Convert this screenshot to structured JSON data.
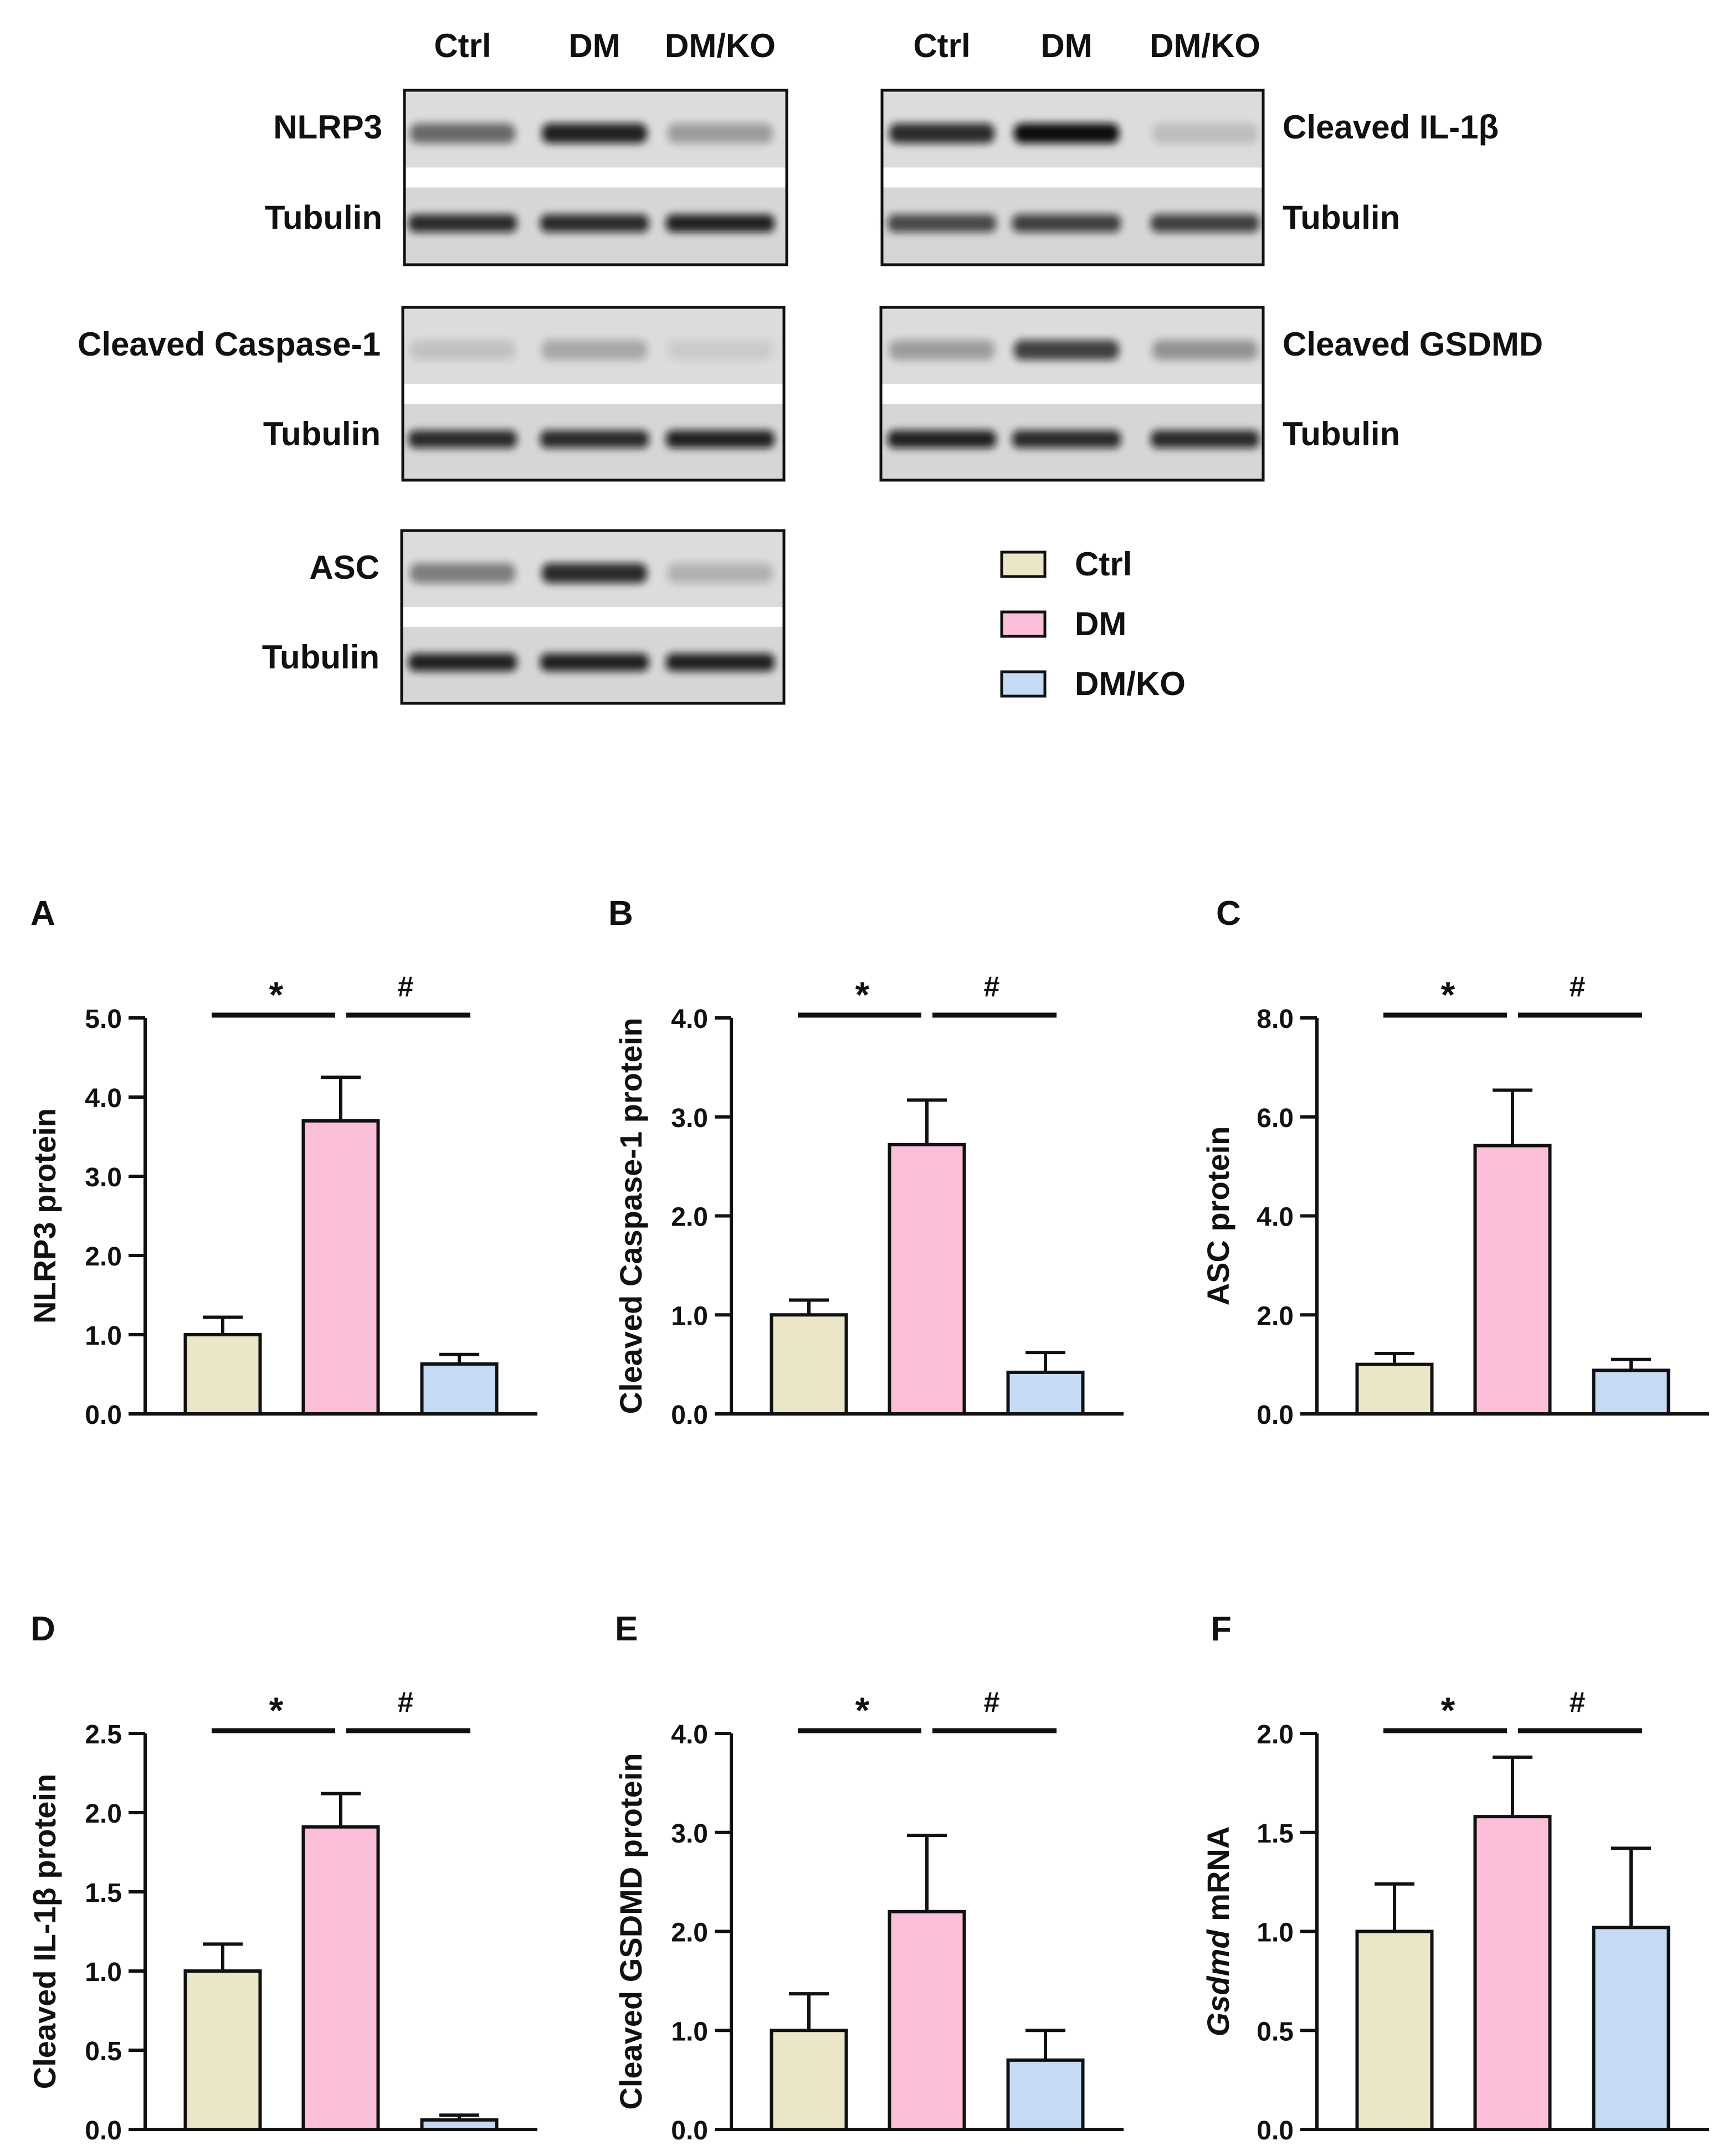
{
  "blots": {
    "lane_labels": [
      "Ctrl",
      "DM",
      "DM/KO"
    ],
    "panels": [
      {
        "id": "nlrp3",
        "target": "NLRP3",
        "loading": "Tubulin",
        "label_side": "left",
        "target_intensity": [
          0.55,
          0.9,
          0.3
        ],
        "loading_intensity": [
          0.85,
          0.85,
          0.9
        ]
      },
      {
        "id": "il1b",
        "target": "Cleaved IL-1β",
        "loading": "Tubulin",
        "label_side": "right",
        "target_intensity": [
          0.85,
          1.0,
          0.15
        ],
        "loading_intensity": [
          0.7,
          0.75,
          0.75
        ]
      },
      {
        "id": "casp1",
        "target": "Cleaved Caspase-1",
        "loading": "Tubulin",
        "label_side": "left",
        "target_intensity": [
          0.12,
          0.25,
          0.08
        ],
        "loading_intensity": [
          0.85,
          0.85,
          0.9
        ]
      },
      {
        "id": "gsdmd",
        "target": "Cleaved GSDMD",
        "loading": "Tubulin",
        "label_side": "right",
        "target_intensity": [
          0.3,
          0.75,
          0.35
        ],
        "loading_intensity": [
          0.9,
          0.85,
          0.85
        ]
      },
      {
        "id": "asc",
        "target": "ASC",
        "loading": "Tubulin",
        "label_side": "left",
        "target_intensity": [
          0.45,
          0.85,
          0.2
        ],
        "loading_intensity": [
          0.9,
          0.9,
          0.9
        ]
      }
    ]
  },
  "legend": {
    "items": [
      {
        "label": "Ctrl",
        "color": "#ece6c9"
      },
      {
        "label": "DM",
        "color": "#fbbfda"
      },
      {
        "label": "DM/KO",
        "color": "#c5daf4"
      }
    ]
  },
  "chart_data": [
    {
      "type": "bar",
      "panel": "A",
      "ylabel": "NLRP3 protein",
      "ylabel_italic": "",
      "categories": [
        "Ctrl",
        "DM",
        "DM/KO"
      ],
      "values": [
        1.0,
        3.7,
        0.63
      ],
      "errors": [
        0.22,
        0.55,
        0.12
      ],
      "ylim": [
        0,
        5
      ],
      "yticks": [
        0,
        1,
        2,
        3,
        4,
        5
      ],
      "tick_labels": [
        "0.0",
        "1.0",
        "2.0",
        "3.0",
        "4.0",
        "5.0"
      ],
      "significance": [
        "*",
        "#"
      ]
    },
    {
      "type": "bar",
      "panel": "B",
      "ylabel": "Cleaved Caspase-1 protein",
      "ylabel_italic": "",
      "categories": [
        "Ctrl",
        "DM",
        "DM/KO"
      ],
      "values": [
        1.0,
        2.72,
        0.42
      ],
      "errors": [
        0.15,
        0.45,
        0.2
      ],
      "ylim": [
        0,
        4
      ],
      "yticks": [
        0,
        1,
        2,
        3,
        4
      ],
      "tick_labels": [
        "0.0",
        "1.0",
        "2.0",
        "3.0",
        "4.0"
      ],
      "significance": [
        "*",
        "#"
      ]
    },
    {
      "type": "bar",
      "panel": "C",
      "ylabel": "ASC protein",
      "ylabel_italic": "",
      "categories": [
        "Ctrl",
        "DM",
        "DM/KO"
      ],
      "values": [
        1.0,
        5.42,
        0.88
      ],
      "errors": [
        0.22,
        1.12,
        0.22
      ],
      "ylim": [
        0,
        8
      ],
      "yticks": [
        0,
        2,
        4,
        6,
        8
      ],
      "tick_labels": [
        "0.0",
        "2.0",
        "4.0",
        "6.0",
        "8.0"
      ],
      "significance": [
        "*",
        "#"
      ]
    },
    {
      "type": "bar",
      "panel": "D",
      "ylabel": "Cleaved IL-1β protein",
      "ylabel_italic": "",
      "categories": [
        "Ctrl",
        "DM",
        "DM/KO"
      ],
      "values": [
        1.0,
        1.91,
        0.06
      ],
      "errors": [
        0.17,
        0.21,
        0.03
      ],
      "ylim": [
        0,
        2.5
      ],
      "yticks": [
        0,
        0.5,
        1,
        1.5,
        2,
        2.5
      ],
      "tick_labels": [
        "0.0",
        "0.5",
        "1.0",
        "1.5",
        "2.0",
        "2.5"
      ],
      "significance": [
        "*",
        "#"
      ]
    },
    {
      "type": "bar",
      "panel": "E",
      "ylabel": "Cleaved GSDMD protein",
      "ylabel_italic": "",
      "categories": [
        "Ctrl",
        "DM",
        "DM/KO"
      ],
      "values": [
        1.0,
        2.2,
        0.7
      ],
      "errors": [
        0.37,
        0.77,
        0.3
      ],
      "ylim": [
        0,
        4
      ],
      "yticks": [
        0,
        1,
        2,
        3,
        4
      ],
      "tick_labels": [
        "0.0",
        "1.0",
        "2.0",
        "3.0",
        "4.0"
      ],
      "significance": [
        "*",
        "#"
      ]
    },
    {
      "type": "bar",
      "panel": "F",
      "ylabel": " mRNA",
      "ylabel_italic": "Gsdmd",
      "categories": [
        "Ctrl",
        "DM",
        "DM/KO"
      ],
      "values": [
        1.0,
        1.58,
        1.02
      ],
      "errors": [
        0.24,
        0.3,
        0.4
      ],
      "ylim": [
        0,
        2
      ],
      "yticks": [
        0,
        0.5,
        1,
        1.5,
        2
      ],
      "tick_labels": [
        "0.0",
        "0.5",
        "1.0",
        "1.5",
        "2.0"
      ],
      "significance": [
        "*",
        "#"
      ]
    }
  ]
}
